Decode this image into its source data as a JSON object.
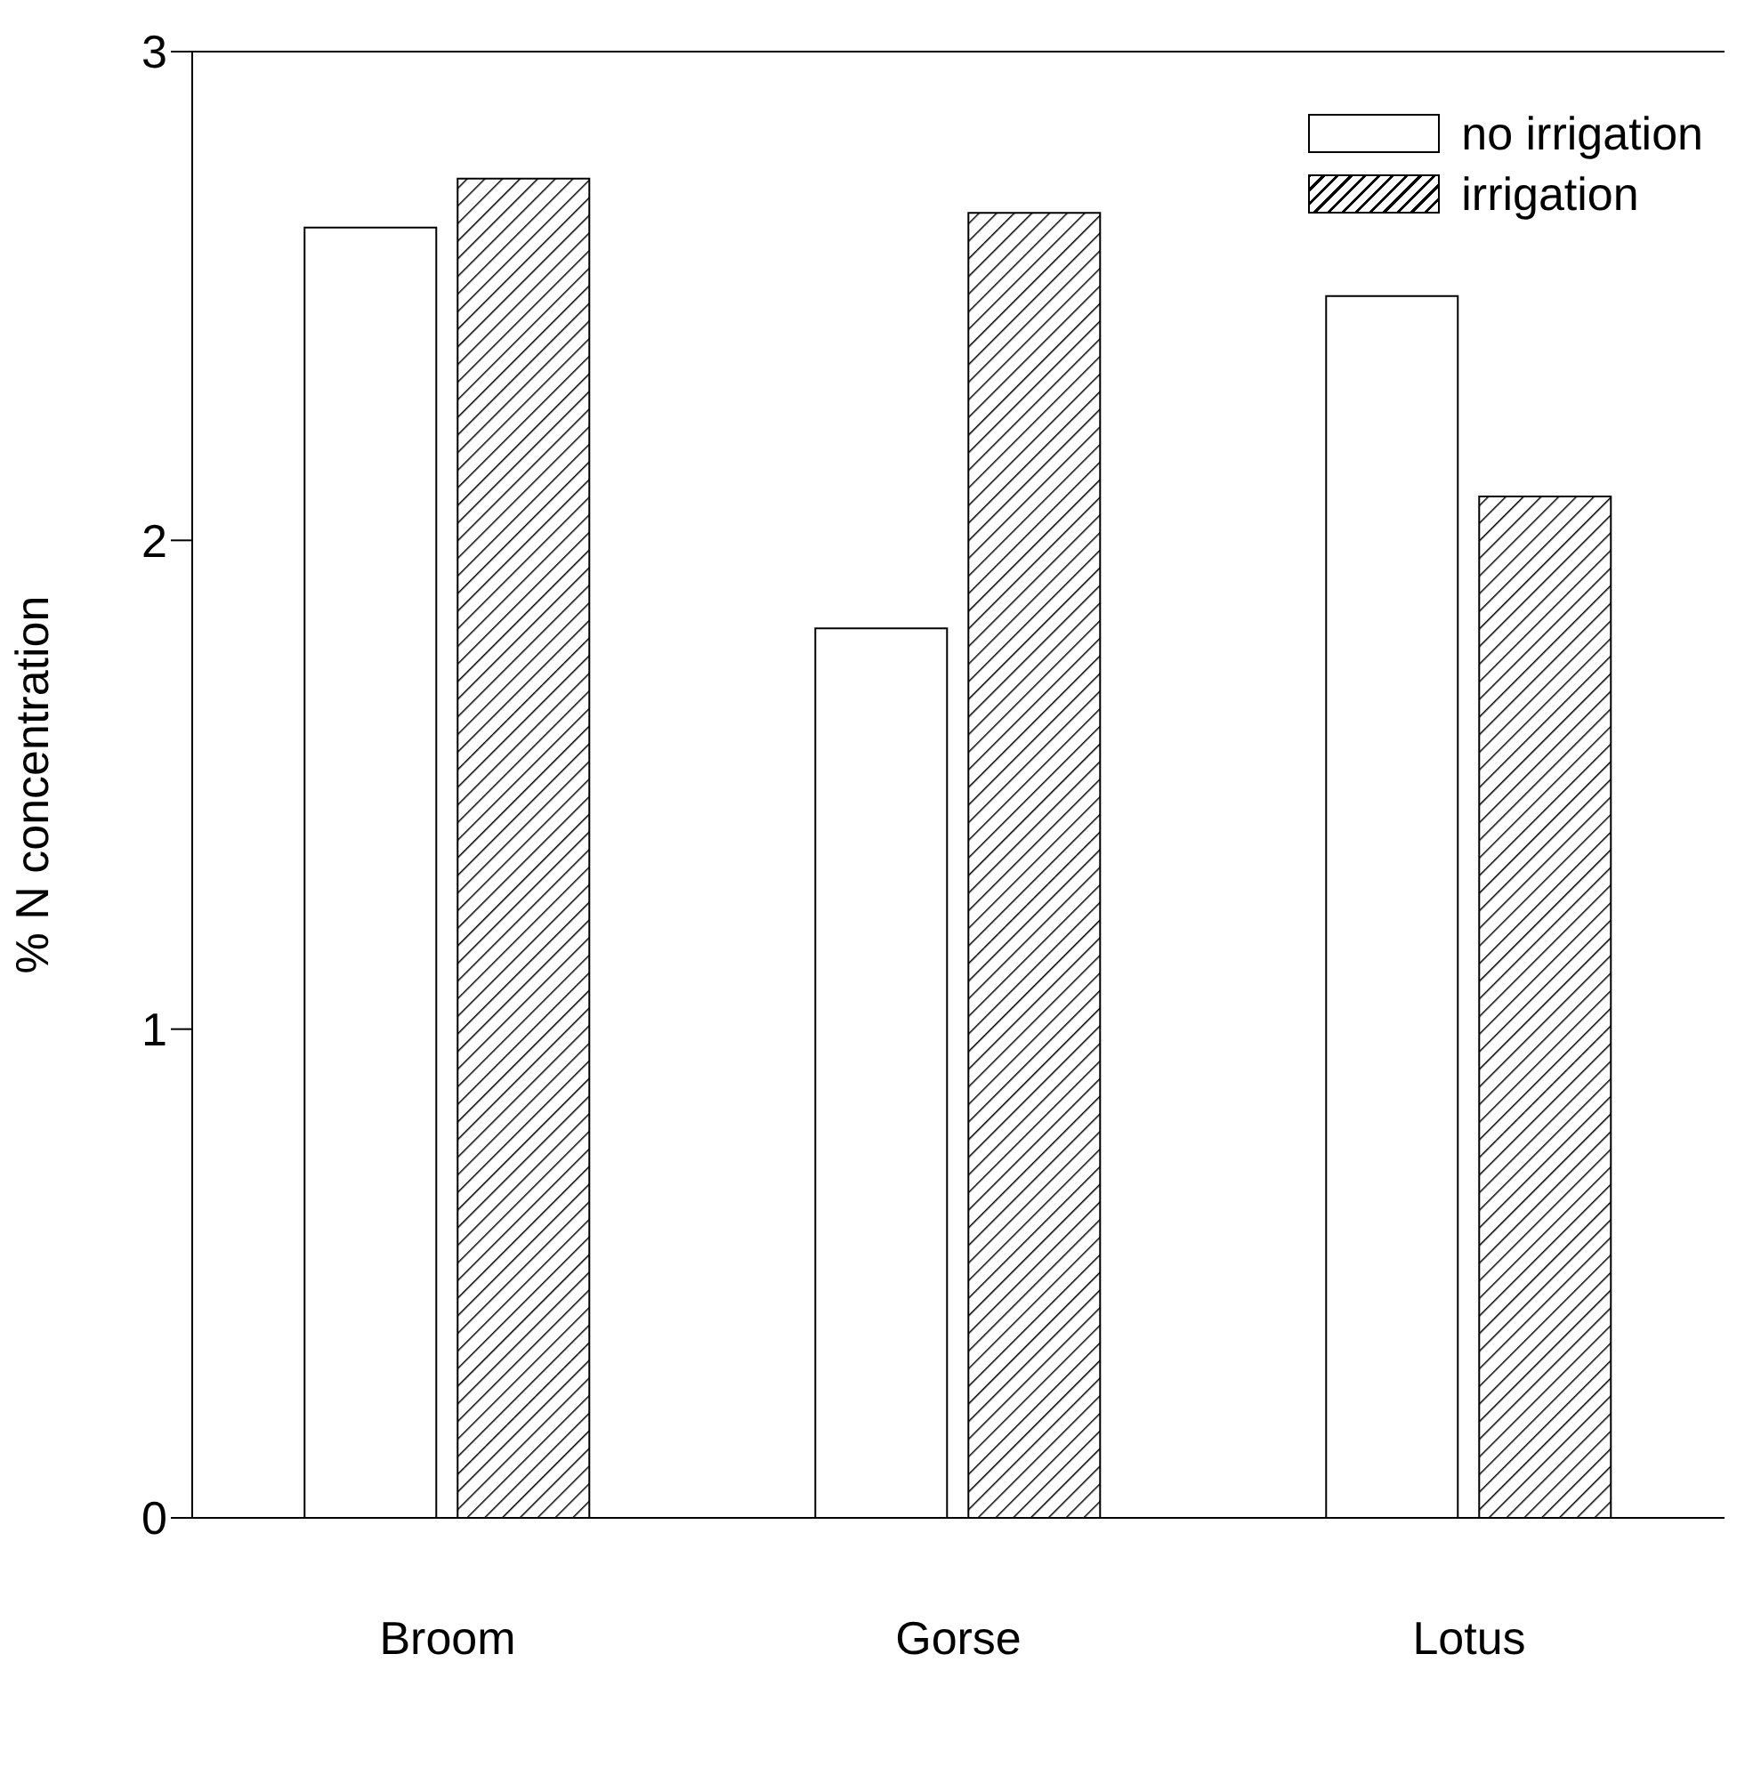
{
  "chart_data": {
    "type": "bar",
    "ylabel": "% N concentration",
    "categories": [
      "Broom",
      "Gorse",
      "Lotus"
    ],
    "series": [
      {
        "name": "no irrigation",
        "color": "#ffffff",
        "values": [
          2.64,
          1.82,
          2.5
        ]
      },
      {
        "name": "irrigation",
        "color": "#000000",
        "values": [
          2.74,
          2.67,
          2.09
        ]
      }
    ],
    "ylim": [
      0,
      3
    ],
    "yticks": [
      0,
      1,
      2,
      3
    ],
    "legend": "top right"
  }
}
